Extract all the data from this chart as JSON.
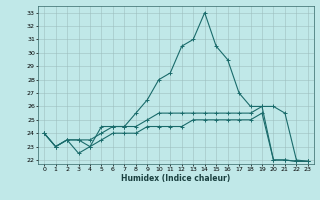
{
  "xlabel": "Humidex (Indice chaleur)",
  "bg_color": "#c0e8e8",
  "grid_color": "#9bbcbc",
  "line_color": "#1a6b6b",
  "xlim": [
    -0.5,
    23.5
  ],
  "ylim": [
    21.7,
    33.5
  ],
  "yticks": [
    22,
    23,
    24,
    25,
    26,
    27,
    28,
    29,
    30,
    31,
    32,
    33
  ],
  "xticks": [
    0,
    1,
    2,
    3,
    4,
    5,
    6,
    7,
    8,
    9,
    10,
    11,
    12,
    13,
    14,
    15,
    16,
    17,
    18,
    19,
    20,
    21,
    22,
    23
  ],
  "line1": [
    24.0,
    23.0,
    23.5,
    22.5,
    23.0,
    24.5,
    24.5,
    24.5,
    25.5,
    26.5,
    28.0,
    28.5,
    30.5,
    31.0,
    33.0,
    30.5,
    29.5,
    27.0,
    26.0,
    26.0,
    22.0,
    22.0,
    21.9,
    21.9
  ],
  "line2": [
    24.0,
    23.0,
    23.5,
    23.5,
    23.5,
    24.0,
    24.5,
    24.5,
    24.5,
    25.0,
    25.5,
    25.5,
    25.5,
    25.5,
    25.5,
    25.5,
    25.5,
    25.5,
    25.5,
    26.0,
    26.0,
    25.5,
    22.0,
    21.9
  ],
  "line3": [
    24.0,
    23.0,
    23.5,
    23.5,
    23.0,
    23.5,
    24.0,
    24.0,
    24.0,
    24.5,
    24.5,
    24.5,
    24.5,
    25.0,
    25.0,
    25.0,
    25.0,
    25.0,
    25.0,
    25.5,
    22.0,
    22.0,
    21.9,
    21.9
  ]
}
